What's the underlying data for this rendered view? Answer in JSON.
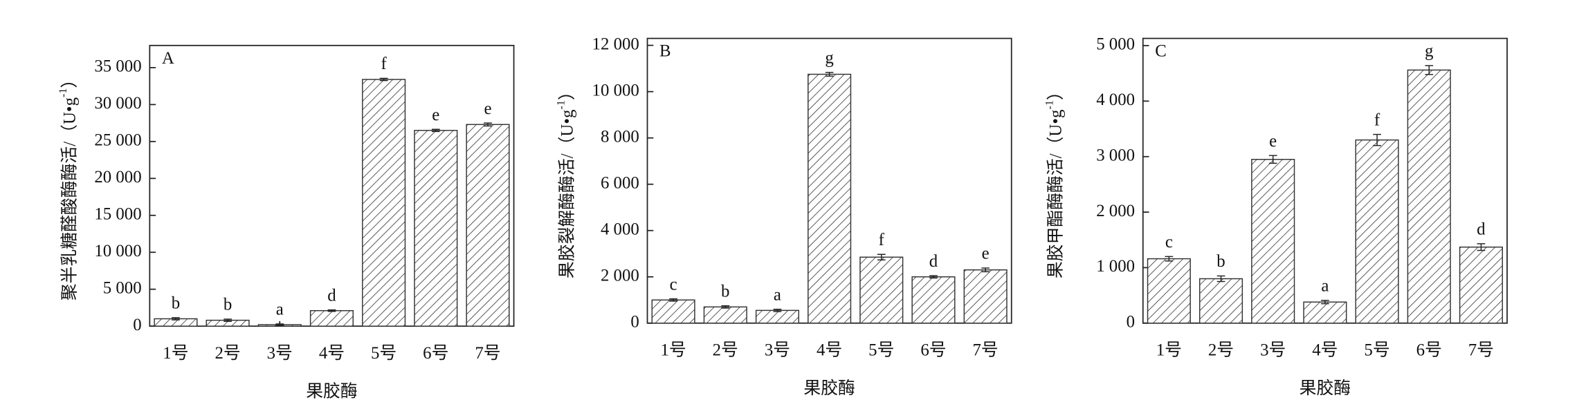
{
  "chart_data": [
    {
      "type": "bar",
      "panel_label": "A",
      "categories": [
        "1号",
        "2号",
        "3号",
        "4号",
        "5号",
        "6号",
        "7号"
      ],
      "values": [
        1000,
        800,
        200,
        2100,
        33400,
        26500,
        27300
      ],
      "errors": [
        150,
        150,
        100,
        100,
        150,
        150,
        200
      ],
      "significance_letters": [
        "b",
        "b",
        "a",
        "d",
        "f",
        "e",
        "e"
      ],
      "xlabel": "果胶酶",
      "ylabel": "聚半乳糖醛酸酶酶活/（U•g",
      "ylabel_sup": "-1",
      "ylabel_end": "）",
      "ylim": [
        0,
        38000
      ],
      "yticks": [
        0,
        {
          "value": 5000,
          "label": "5 000"
        },
        {
          "value": 10000,
          "label": "10 000"
        },
        {
          "value": 15000,
          "label": "15 000"
        },
        {
          "value": 20000,
          "label": "20 000"
        },
        {
          "value": 25000,
          "label": "25 000"
        },
        {
          "value": 30000,
          "label": "30 000"
        },
        {
          "value": 35000,
          "label": "35 000"
        }
      ],
      "color": "#333333"
    },
    {
      "type": "bar",
      "panel_label": "B",
      "categories": [
        "1号",
        "2号",
        "3号",
        "4号",
        "5号",
        "6号",
        "7号"
      ],
      "values": [
        1000,
        700,
        550,
        10750,
        2850,
        2000,
        2300
      ],
      "errors": [
        50,
        50,
        50,
        80,
        120,
        50,
        80
      ],
      "significance_letters": [
        "c",
        "b",
        "a",
        "g",
        "f",
        "d",
        "e"
      ],
      "xlabel": "果胶酶",
      "ylabel": "果胶裂解酶酶活/（U•g",
      "ylabel_sup": "-1",
      "ylabel_end": "）",
      "ylim": [
        0,
        12300
      ],
      "yticks": [
        0,
        {
          "value": 2000,
          "label": "2 000"
        },
        {
          "value": 4000,
          "label": "4 000"
        },
        {
          "value": 6000,
          "label": "6 000"
        },
        {
          "value": 8000,
          "label": "8 000"
        },
        {
          "value": 10000,
          "label": "10 000"
        },
        {
          "value": 12000,
          "label": "12 000"
        }
      ],
      "color": "#333333"
    },
    {
      "type": "bar",
      "panel_label": "C",
      "categories": [
        "1号",
        "2号",
        "3号",
        "4号",
        "5号",
        "6号",
        "7号"
      ],
      "values": [
        1160,
        800,
        2950,
        380,
        3300,
        4560,
        1370
      ],
      "errors": [
        40,
        50,
        70,
        30,
        100,
        80,
        60
      ],
      "significance_letters": [
        "c",
        "b",
        "e",
        "a",
        "f",
        "g",
        "d"
      ],
      "xlabel": "果胶酶",
      "ylabel": "果胶甲酯酶酶活/（U•g",
      "ylabel_sup": "-1",
      "ylabel_end": "）",
      "ylim": [
        0,
        5130
      ],
      "yticks": [
        0,
        {
          "value": 1000,
          "label": "1 000"
        },
        {
          "value": 2000,
          "label": "2 000"
        },
        {
          "value": 3000,
          "label": "3 000"
        },
        {
          "value": 4000,
          "label": "4 000"
        },
        {
          "value": 5000,
          "label": "5 000"
        }
      ],
      "color": "#333333"
    }
  ]
}
